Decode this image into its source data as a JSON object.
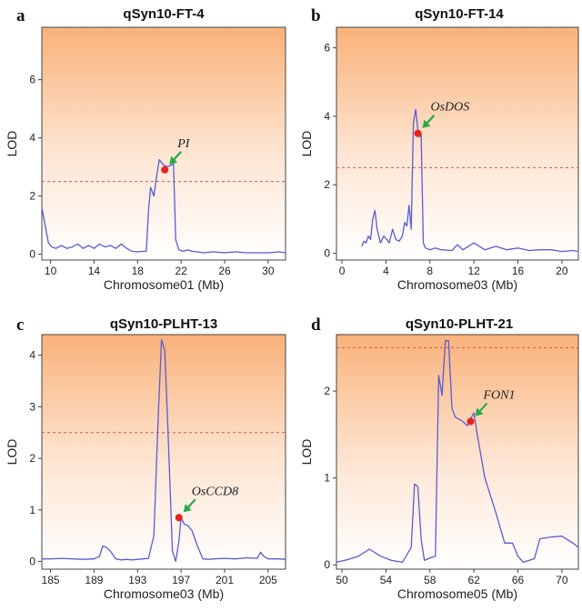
{
  "colors": {
    "line": "#5b5bd6",
    "threshold": "#d9534f",
    "marker": "#e8221c",
    "arrow": "#27a847",
    "bg_top": "#f9b27a",
    "bg_bottom": "#ffffff"
  },
  "chart_data": [
    {
      "letter": "a",
      "type": "line",
      "title": "qSyn10-FT-4",
      "xlabel": "Chromosome01 (Mb)",
      "ylabel": "LOD",
      "xlim": [
        9.2,
        31.6
      ],
      "ylim": [
        -0.2,
        7.8
      ],
      "xticks": [
        10,
        14,
        18,
        22,
        26,
        30
      ],
      "yticks": [
        0,
        2,
        4,
        6
      ],
      "threshold": 2.5,
      "gene": {
        "name": "PI",
        "x": 20.5,
        "y": 2.9
      },
      "x": [
        9.2,
        9.5,
        9.8,
        10.1,
        10.5,
        11.0,
        11.5,
        12.0,
        12.5,
        13.0,
        13.5,
        14.0,
        14.5,
        15.0,
        15.5,
        16.0,
        16.5,
        17.0,
        17.5,
        18.0,
        18.5,
        18.8,
        19.0,
        19.2,
        19.5,
        19.8,
        20.0,
        20.3,
        20.7,
        21.0,
        21.3,
        21.5,
        21.8,
        22.2,
        22.6,
        23.0,
        23.5,
        24.0,
        25.0,
        26.0,
        27.0,
        28.0,
        29.0,
        30.0,
        31.0,
        31.6
      ],
      "y": [
        1.6,
        1.0,
        0.4,
        0.25,
        0.2,
        0.3,
        0.2,
        0.25,
        0.35,
        0.2,
        0.3,
        0.2,
        0.35,
        0.25,
        0.3,
        0.2,
        0.35,
        0.2,
        0.1,
        0.08,
        0.1,
        0.1,
        1.5,
        2.3,
        2.0,
        2.8,
        3.25,
        3.1,
        3.0,
        3.05,
        3.1,
        0.5,
        0.15,
        0.1,
        0.15,
        0.1,
        0.08,
        0.05,
        0.08,
        0.05,
        0.08,
        0.05,
        0.05,
        0.05,
        0.08,
        0.05
      ]
    },
    {
      "letter": "b",
      "type": "line",
      "title": "qSyn10-FT-14",
      "xlabel": "Chromosome03 (Mb)",
      "ylabel": "LOD",
      "xlim": [
        -0.5,
        21.5
      ],
      "ylim": [
        -0.2,
        6.6
      ],
      "xticks": [
        0,
        4,
        8,
        12,
        16,
        20
      ],
      "yticks": [
        0,
        2,
        4,
        6
      ],
      "threshold": 2.5,
      "gene": {
        "name": "OsDOS",
        "x": 6.9,
        "y": 3.5
      },
      "x": [
        1.8,
        2.0,
        2.2,
        2.4,
        2.6,
        2.8,
        3.0,
        3.2,
        3.5,
        3.8,
        4.1,
        4.3,
        4.6,
        4.9,
        5.2,
        5.5,
        5.7,
        5.9,
        6.1,
        6.3,
        6.5,
        6.7,
        6.9,
        7.1,
        7.2,
        7.4,
        7.6,
        8.0,
        8.5,
        9.0,
        10.0,
        10.5,
        11.0,
        11.5,
        12.0,
        13.0,
        14.0,
        15.0,
        16.0,
        17.0,
        18.0,
        19.0,
        20.0,
        21.0,
        21.5
      ],
      "y": [
        0.2,
        0.35,
        0.3,
        0.5,
        0.4,
        1.0,
        1.25,
        0.7,
        0.3,
        0.5,
        0.4,
        0.3,
        0.7,
        0.4,
        0.35,
        0.5,
        0.9,
        0.8,
        1.4,
        0.7,
        3.8,
        4.2,
        3.6,
        3.4,
        3.5,
        0.3,
        0.15,
        0.1,
        0.15,
        0.1,
        0.08,
        0.25,
        0.1,
        0.2,
        0.3,
        0.1,
        0.2,
        0.1,
        0.15,
        0.08,
        0.1,
        0.1,
        0.05,
        0.08,
        0.05
      ]
    },
    {
      "letter": "c",
      "type": "line",
      "title": "qSyn10-PLHT-13",
      "xlabel": "Chromosome03 (Mb)",
      "ylabel": "LOD",
      "xlim": [
        184.2,
        206.6
      ],
      "ylim": [
        -0.15,
        4.4
      ],
      "xticks": [
        185,
        189,
        193,
        197,
        201,
        205
      ],
      "yticks": [
        0,
        1,
        2,
        3,
        4
      ],
      "threshold": 2.5,
      "gene": {
        "name": "OsCCD8",
        "x": 196.8,
        "y": 0.85
      },
      "x": [
        184.2,
        185.0,
        186.0,
        187.0,
        188.0,
        189.0,
        189.5,
        189.8,
        190.1,
        190.5,
        191.0,
        191.5,
        192.0,
        192.5,
        193.0,
        193.5,
        194.0,
        194.5,
        194.9,
        195.2,
        195.5,
        195.8,
        196.2,
        196.5,
        196.8,
        197.0,
        197.3,
        197.6,
        198.0,
        198.5,
        199.0,
        199.5,
        200.0,
        201.0,
        202.0,
        203.0,
        204.0,
        204.3,
        204.6,
        205.0,
        206.0,
        206.6
      ],
      "y": [
        0.05,
        0.05,
        0.06,
        0.05,
        0.04,
        0.05,
        0.1,
        0.3,
        0.28,
        0.2,
        0.05,
        0.03,
        0.04,
        0.03,
        0.04,
        0.05,
        0.06,
        0.5,
        2.8,
        4.3,
        4.1,
        2.5,
        0.2,
        0.0,
        0.4,
        0.85,
        0.72,
        0.7,
        0.6,
        0.3,
        0.05,
        0.04,
        0.05,
        0.06,
        0.05,
        0.07,
        0.06,
        0.18,
        0.1,
        0.05,
        0.05,
        0.04
      ]
    },
    {
      "letter": "d",
      "type": "line",
      "title": "qSyn10-PLHT-21",
      "xlabel": "Chromosome05 (Mb)",
      "ylabel": "LOD",
      "xlim": [
        49.5,
        71.5
      ],
      "ylim": [
        -0.05,
        2.65
      ],
      "xticks": [
        50,
        54,
        58,
        62,
        66,
        70
      ],
      "yticks": [
        0,
        1,
        2
      ],
      "threshold": 2.5,
      "gene": {
        "name": "FON1",
        "x": 61.7,
        "y": 1.65
      },
      "x": [
        49.5,
        50.5,
        51.5,
        52.5,
        53.5,
        54.5,
        55.5,
        56.3,
        56.6,
        56.9,
        57.2,
        57.5,
        58.0,
        58.5,
        58.8,
        59.1,
        59.4,
        59.7,
        60.0,
        60.3,
        60.6,
        61.0,
        61.4,
        61.7,
        62.0,
        62.3,
        63.0,
        64.0,
        64.8,
        65.5,
        66.0,
        66.5,
        67.0,
        67.5,
        68.0,
        69.0,
        70.0,
        71.0,
        71.5
      ],
      "y": [
        0.03,
        0.06,
        0.1,
        0.18,
        0.1,
        0.05,
        0.03,
        0.2,
        0.93,
        0.9,
        0.3,
        0.05,
        0.08,
        0.1,
        2.18,
        1.95,
        2.58,
        2.58,
        1.8,
        1.7,
        1.68,
        1.65,
        1.6,
        1.68,
        1.75,
        1.5,
        1.0,
        0.6,
        0.25,
        0.25,
        0.1,
        0.03,
        0.05,
        0.07,
        0.3,
        0.32,
        0.33,
        0.25,
        0.2
      ]
    }
  ]
}
